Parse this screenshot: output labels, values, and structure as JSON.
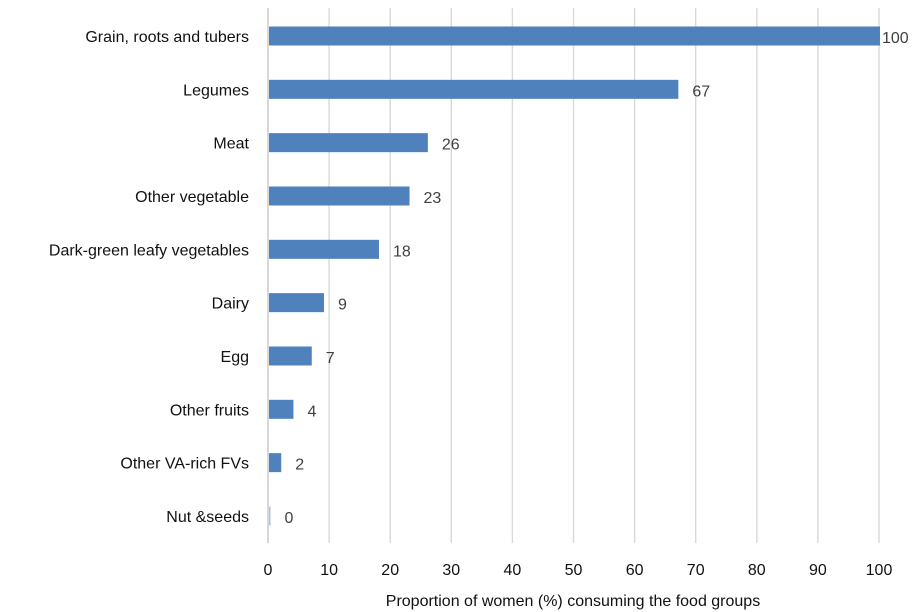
{
  "chart_data": {
    "type": "bar",
    "orientation": "horizontal",
    "categories": [
      "Grain, roots and tubers",
      "Legumes",
      "Meat",
      "Other vegetable",
      "Dark-green leafy vegetables",
      "Dairy",
      "Egg",
      "Other fruits",
      "Other VA-rich FVs",
      "Nut &seeds"
    ],
    "values": [
      100,
      67,
      26,
      23,
      18,
      9,
      7,
      4,
      2,
      0
    ],
    "xlabel": "Proportion of women (%) consuming the food groups",
    "ylabel": "",
    "xlim": [
      0,
      100
    ],
    "xticks": [
      "0",
      "10",
      "20",
      "30",
      "40",
      "50",
      "60",
      "70",
      "80",
      "90",
      "100"
    ],
    "grid": true,
    "legend": "none",
    "bar_color": "#4f81bd"
  }
}
